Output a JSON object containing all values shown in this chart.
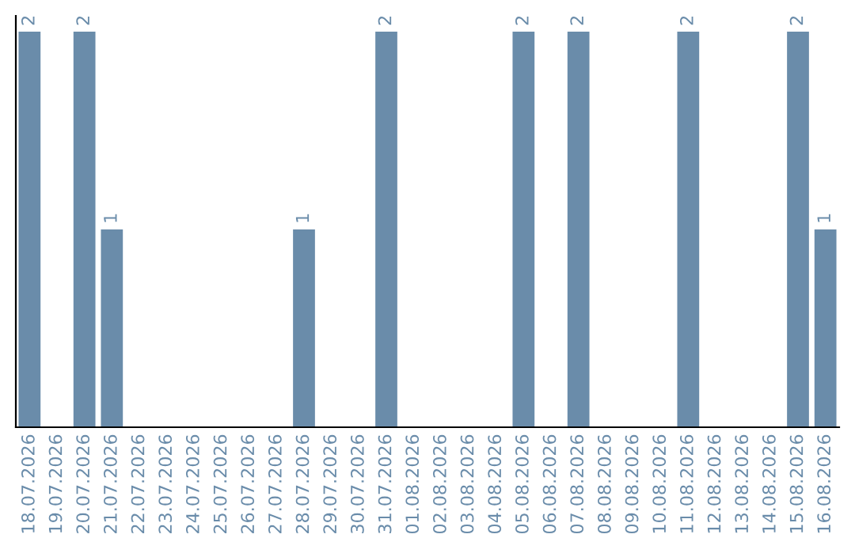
{
  "chart_data": {
    "type": "bar",
    "categories": [
      "18.07.2026",
      "19.07.2026",
      "20.07.2026",
      "21.07.2026",
      "22.07.2026",
      "23.07.2026",
      "24.07.2026",
      "25.07.2026",
      "26.07.2026",
      "27.07.2026",
      "28.07.2026",
      "29.07.2026",
      "30.07.2026",
      "31.07.2026",
      "01.08.2026",
      "02.08.2026",
      "03.08.2026",
      "04.08.2026",
      "05.08.2026",
      "06.08.2026",
      "07.08.2026",
      "08.08.2026",
      "09.08.2026",
      "10.08.2026",
      "11.08.2026",
      "12.08.2026",
      "13.08.2026",
      "14.08.2026",
      "15.08.2026",
      "16.08.2026"
    ],
    "values": [
      2,
      0,
      2,
      1,
      0,
      0,
      0,
      0,
      0,
      0,
      1,
      0,
      0,
      2,
      0,
      0,
      0,
      0,
      2,
      0,
      2,
      0,
      0,
      0,
      2,
      0,
      0,
      0,
      2,
      1
    ],
    "value_labels": [
      "2",
      null,
      "2",
      "1",
      null,
      null,
      null,
      null,
      null,
      null,
      "1",
      null,
      null,
      "2",
      null,
      null,
      null,
      null,
      "2",
      null,
      "2",
      null,
      null,
      null,
      "2",
      null,
      null,
      null,
      "2",
      "1"
    ],
    "color": "#6a8caa",
    "tick_labels": "x",
    "grid": false,
    "legend": false
  }
}
